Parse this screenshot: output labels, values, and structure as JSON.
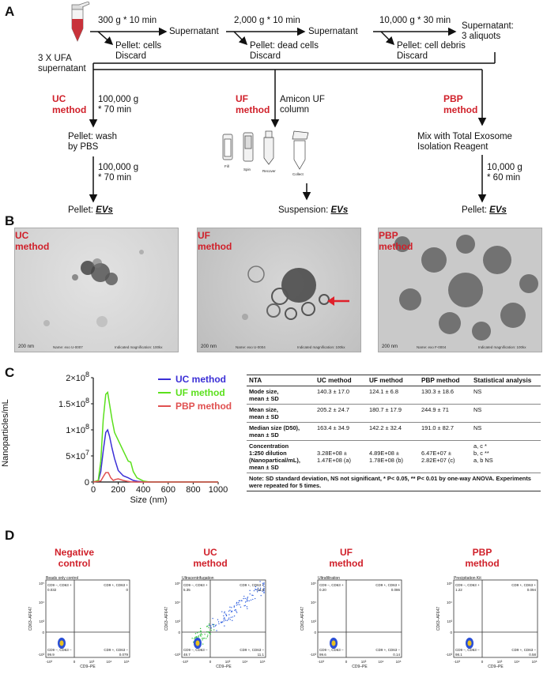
{
  "panel_a": {
    "letter": "A",
    "source_label_1": "3 X UFA",
    "source_label_2": "supernatant",
    "step1_condition": "300 g * 10 min",
    "step1_pellet_1": "Pellet: cells",
    "step1_pellet_2": "Discard",
    "supernatant_1": "Supernatant",
    "step2_condition": "2,000 g * 10 min",
    "step2_pellet_1": "Pellet: dead cells",
    "step2_pellet_2": "Discard",
    "supernatant_2": "Supernatant",
    "step3_condition": "10,000 g * 30 min",
    "step3_pellet_1": "Pellet: cell debris",
    "step3_pellet_2": "Discard",
    "supernatant_3_1": "Supernatant:",
    "supernatant_3_2": "3 aliquots",
    "uc_label_1": "UC",
    "uc_label_2": "method",
    "uc_cond1_1": "100,000 g",
    "uc_cond1_2": "* 70 min",
    "uc_wash_1": "Pellet: wash",
    "uc_wash_2": "by PBS",
    "uc_cond2_1": "100,000 g",
    "uc_cond2_2": "* 70 min",
    "uc_result_prefix": "Pellet: ",
    "uc_result_em": "EVs",
    "uf_label_1": "UF",
    "uf_label_2": "method",
    "uf_cond_1": "Amicon UF",
    "uf_cond_2": "column",
    "uf_icons": [
      "Fill",
      "Spin",
      "Recover",
      "Collect"
    ],
    "uf_result_prefix": "Suspension: ",
    "uf_result_em": "EVs",
    "pbp_label_1": "PBP",
    "pbp_label_2": "method",
    "pbp_mix_1": "Mix with Total Exosome",
    "pbp_mix_2": "Isolation Reagent",
    "pbp_cond_1": "10,000 g",
    "pbp_cond_2": "* 60 min",
    "pbp_result_prefix": "Pellet: ",
    "pbp_result_em": "EVs"
  },
  "panel_b": {
    "letter": "B",
    "images": [
      {
        "label_1": "UC",
        "label_2": "method",
        "scale": "200 nm",
        "name": "Name: exo U-0007",
        "mag": "Indicated magnification: 100kx"
      },
      {
        "label_1": "UF",
        "label_2": "method",
        "scale": "200 nm",
        "name": "Name: exo U-0004",
        "mag": "Indicated magnification: 100kx"
      },
      {
        "label_1": "PBP",
        "label_2": "method",
        "scale": "200 nm",
        "name": "Name: exo F-0004",
        "mag": "Indicated magnification: 100kx"
      }
    ],
    "arrow_color": "#e0202a"
  },
  "panel_c": {
    "letter": "C",
    "chart_data": {
      "type": "line",
      "xlabel": "Size (nm)",
      "ylabel": "Nanoparticles/mL",
      "xlim": [
        0,
        1000
      ],
      "ylim": [
        0,
        200000000
      ],
      "x_ticks": [
        "0",
        "200",
        "400",
        "600",
        "800",
        "1000"
      ],
      "y_ticks": [
        "0",
        "5×10 7",
        "1×10 8",
        "1.5×10 8",
        "2×10 8"
      ],
      "y_tick_labels": [
        {
          "base": "0",
          "exp": ""
        },
        {
          "base": "5×10",
          "exp": "7"
        },
        {
          "base": "1×10",
          "exp": "8"
        },
        {
          "base": "1.5×10",
          "exp": "8"
        },
        {
          "base": "2×10",
          "exp": "8"
        }
      ],
      "legend_position": "top-right",
      "series": [
        {
          "name": "UC method",
          "color": "#3b2fd6",
          "x": [
            0,
            40,
            60,
            80,
            100,
            115,
            130,
            150,
            170,
            200,
            240,
            280,
            320,
            360,
            400,
            450,
            500,
            600,
            700,
            800,
            900,
            1000
          ],
          "y": [
            0,
            2000000,
            20000000,
            60000000,
            95000000,
            100000000,
            88000000,
            65000000,
            45000000,
            22000000,
            12000000,
            8000000,
            3000000,
            1000000,
            500000,
            0,
            0,
            0,
            0,
            0,
            0,
            0
          ]
        },
        {
          "name": "UF method",
          "color": "#5be01c",
          "x": [
            0,
            40,
            60,
            80,
            100,
            115,
            130,
            150,
            170,
            200,
            240,
            280,
            300,
            320,
            350,
            400,
            450,
            500,
            600,
            700,
            800,
            900,
            1000
          ],
          "y": [
            0,
            3000000,
            40000000,
            120000000,
            168000000,
            172000000,
            150000000,
            120000000,
            95000000,
            80000000,
            60000000,
            40000000,
            38000000,
            20000000,
            8000000,
            2000000,
            0,
            0,
            0,
            0,
            0,
            0,
            0
          ]
        },
        {
          "name": "PBP method",
          "color": "#e05050",
          "x": [
            0,
            60,
            80,
            100,
            120,
            140,
            160,
            180,
            200,
            240,
            260,
            280,
            300,
            350,
            400,
            500,
            600,
            700,
            800,
            900,
            1000
          ],
          "y": [
            0,
            2000000,
            10000000,
            18000000,
            18000000,
            8000000,
            3000000,
            5000000,
            6000000,
            3000000,
            2000000,
            1000000,
            500000,
            0,
            0,
            0,
            0,
            0,
            0,
            0,
            0
          ]
        }
      ]
    },
    "table": {
      "headers": [
        "NTA",
        "UC method",
        "UF method",
        "PBP method",
        "Statistical analysis"
      ],
      "rows": [
        {
          "label": "Mode size,\nmean ± SD",
          "uc": "140.3 ± 17.0",
          "uf": "124.1 ± 6.8",
          "pbp": "130.3 ± 18.6",
          "stat": "NS"
        },
        {
          "label": "Mean size,\nmean ± SD",
          "uc": "205.2 ± 24.7",
          "uf": "180.7 ± 17.9",
          "pbp": "244.9 ± 71",
          "stat": "NS"
        },
        {
          "label": "Median size (D50),\nmean ± SD",
          "uc": "163.4 ± 34.9",
          "uf": "142.2 ± 32.4",
          "pbp": "191.0 ± 82.7",
          "stat": "NS"
        },
        {
          "label": "Concentration\n1:250 dilution\n(Nanopartical/mL),\nmean ± SD",
          "uc": "\n3.28E+08 ±\n1.47E+08 (a)",
          "uf": "\n4.89E+08 ±\n1.78E+08 (b)",
          "pbp": "\n6.47E+07 ±\n2.82E+07 (c)",
          "stat": "a, c *\nb, c **\na, b NS"
        }
      ],
      "note": "Note: SD standard deviation, NS not significant, * P< 0.05, ** P< 0.01 by one-way ANOVA. Experiments were repeated for 5 times."
    }
  },
  "panel_d": {
    "letter": "D",
    "plots": [
      {
        "title_1": "Negative",
        "title_2": "control",
        "subtitle": "Beads only control",
        "q_ul_label": "CD9 –, CD63 +",
        "q_ul_val": "0.032",
        "q_ur_label": "CD9 +, CD63 +",
        "q_ur_val": "0",
        "q_ll_label": "CD9 –, CD63 –",
        "q_ll_val": "99.9",
        "q_lr_label": "CD9 +, CD63 –",
        "q_lr_val": "0.079",
        "scatter": false
      },
      {
        "title_1": "UC",
        "title_2": "method",
        "subtitle": "Ultracentrifugation",
        "q_ul_label": "CD9 –, CD63 +",
        "q_ul_val": "5.35",
        "q_ur_label": "CD9 +, CD63 +",
        "q_ur_val": "34.8",
        "q_ll_label": "CD9 –, CD63 –",
        "q_ll_val": "48.7",
        "q_lr_label": "CD9 +, CD63 –",
        "q_lr_val": "11.1",
        "scatter": true
      },
      {
        "title_1": "UF",
        "title_2": "method",
        "subtitle": "Ultrafiltration",
        "q_ul_label": "CD9 –, CD63 +",
        "q_ul_val": "0.20",
        "q_ur_label": "CD9 +, CD63 +",
        "q_ur_val": "0.086",
        "q_ll_label": "CD9 –, CD63 –",
        "q_ll_val": "99.6",
        "q_lr_label": "CD9 +, CD63 –",
        "q_lr_val": "0.14",
        "scatter": false
      },
      {
        "title_1": "PBP",
        "title_2": "method",
        "subtitle": "Precipitation Kit",
        "q_ul_label": "CD9 –, CD63 +",
        "q_ul_val": "1.22",
        "q_ur_label": "CD9 +, CD63 +",
        "q_ur_val": "0.094",
        "q_ll_label": "CD9 –, CD63 –",
        "q_ll_val": "98.1",
        "q_lr_label": "CD9 +, CD63 –",
        "q_lr_val": "0.58",
        "scatter": false
      }
    ],
    "y_axis": "CD63–AF647",
    "x_axis": "CD9–PE",
    "y_ticks": [
      "10⁵",
      "10⁴",
      "10³",
      "0",
      "-10³"
    ],
    "x_ticks": [
      "-10³",
      "0",
      "10³",
      "10⁴",
      "10⁵"
    ]
  }
}
